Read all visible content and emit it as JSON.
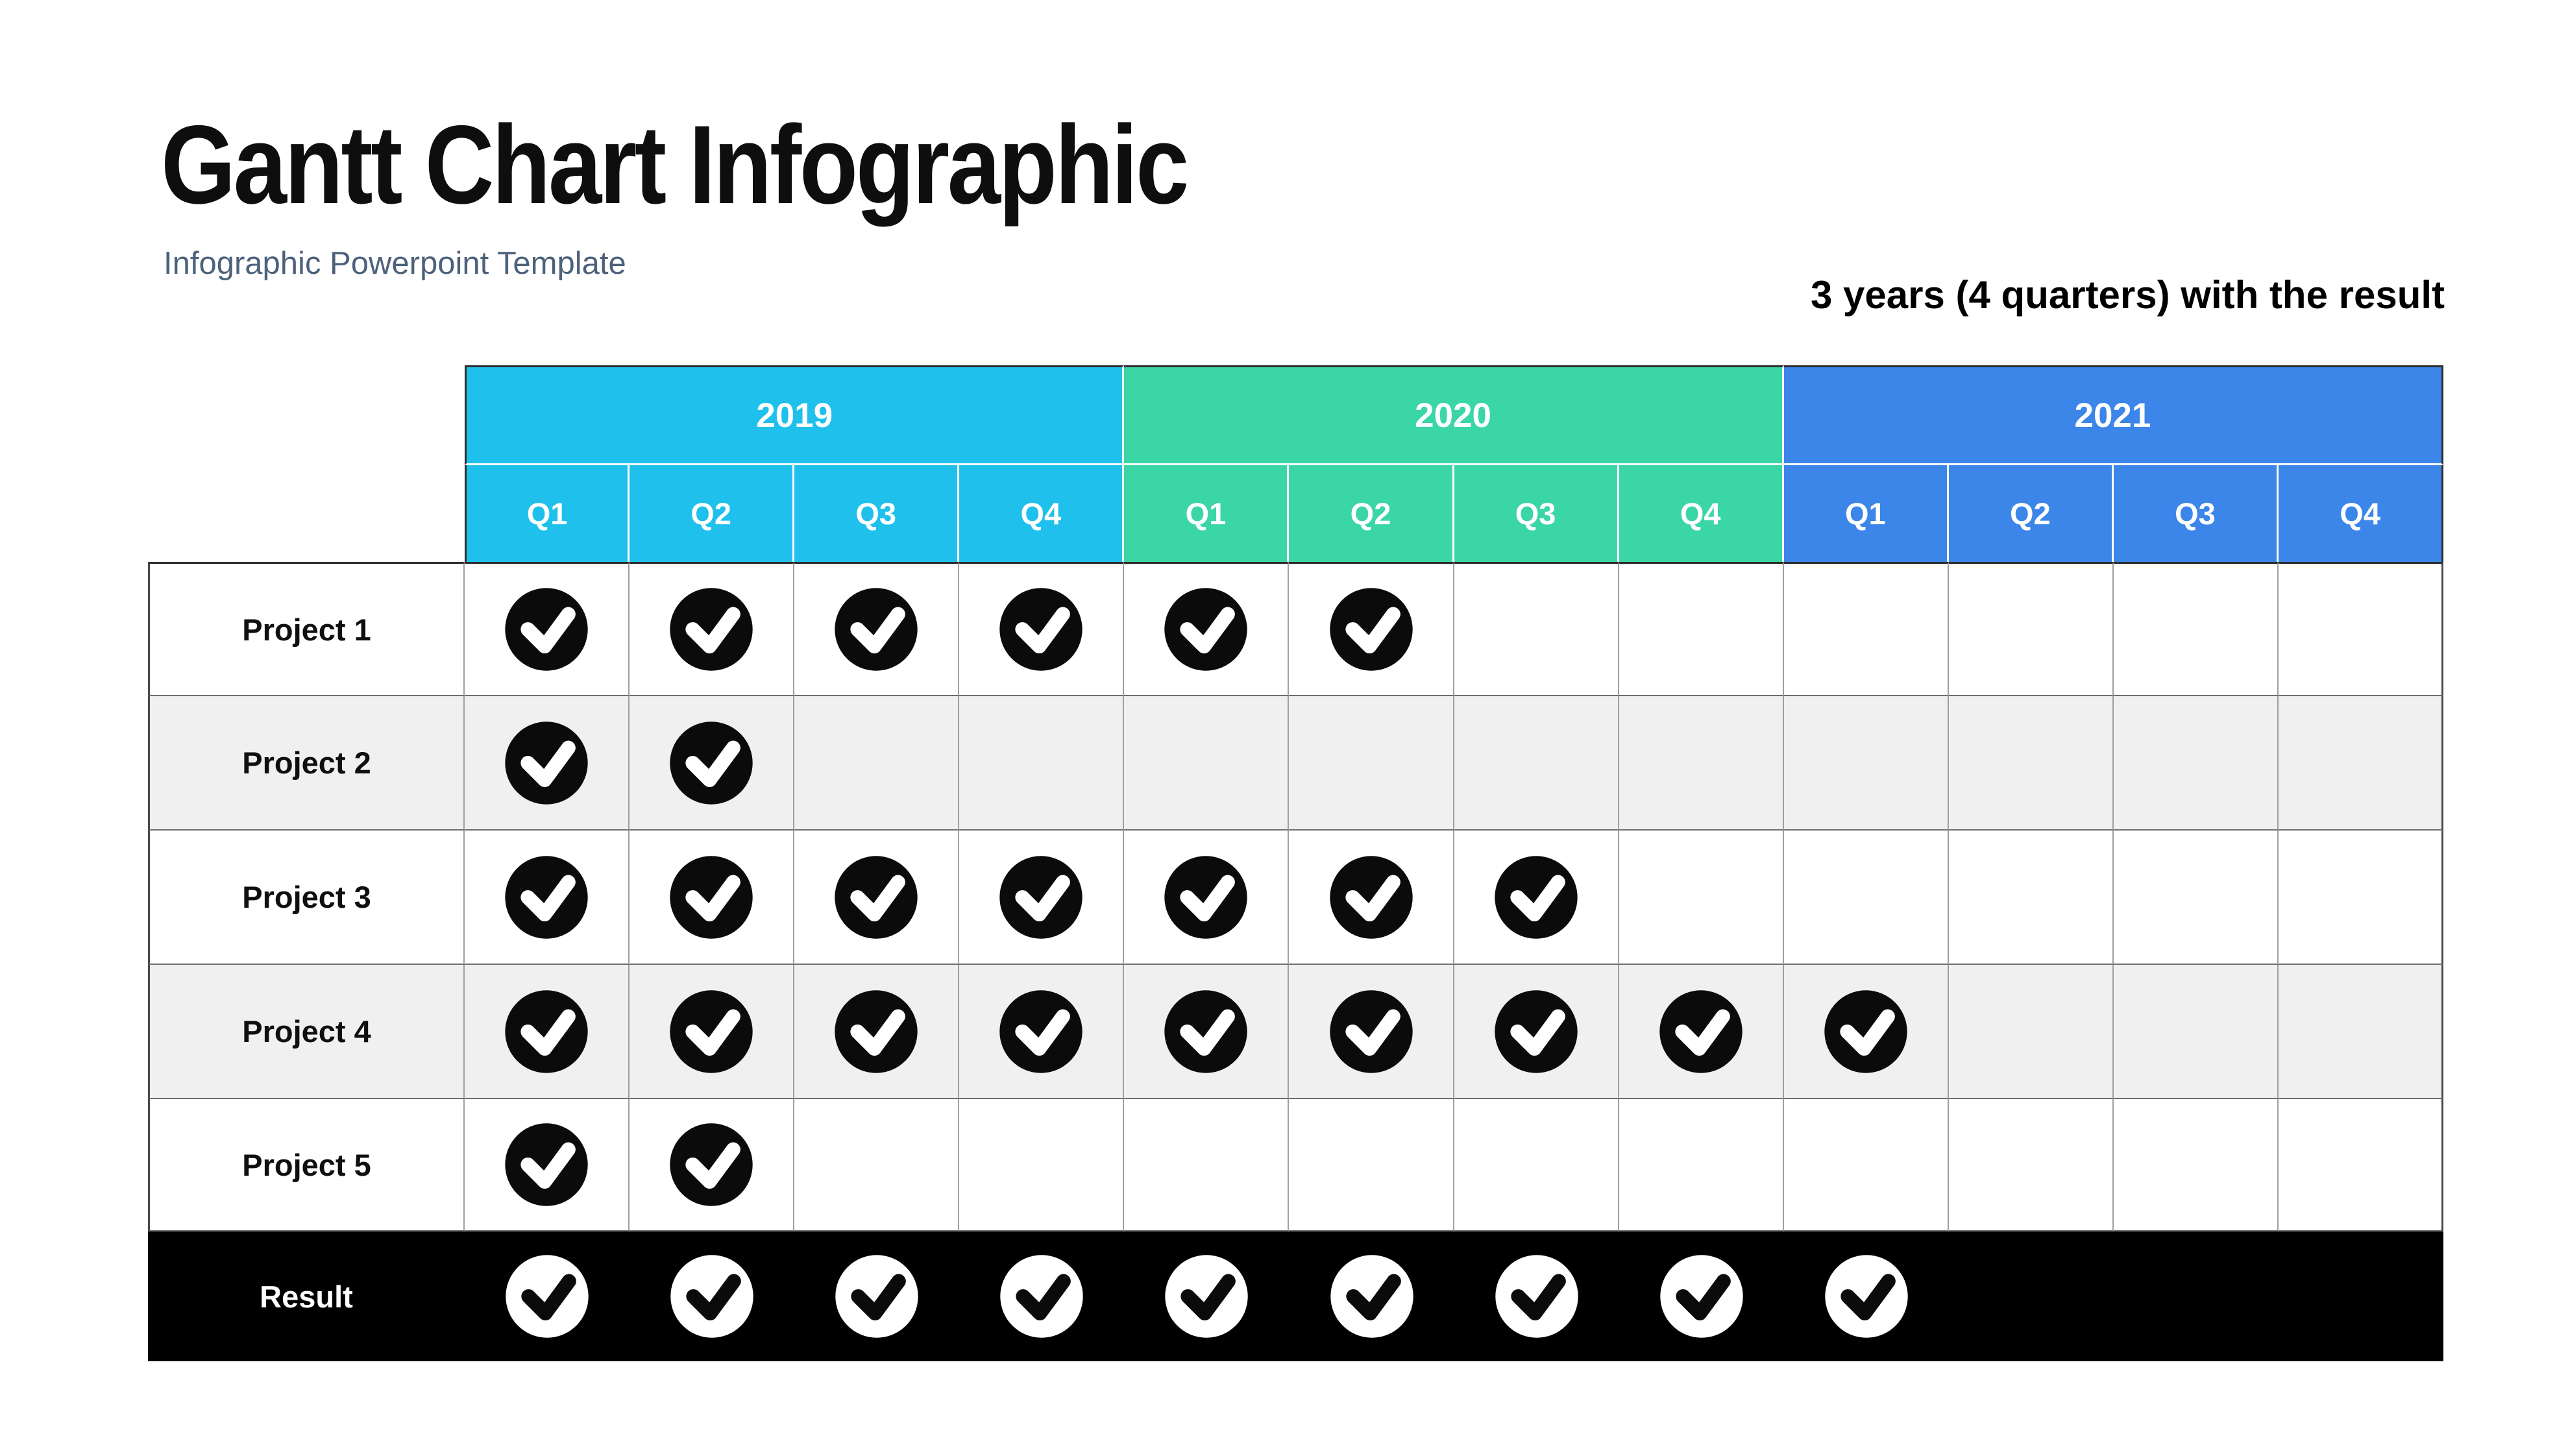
{
  "slide": {
    "title": "Gantt Chart Infographic",
    "subtitle": "Infographic Powerpoint Template",
    "annotation": "3 years (4 quarters) with the result"
  },
  "colors": {
    "year_2019": "#1fc1ec",
    "year_2020": "#3bd6a6",
    "year_2021": "#3b86e8",
    "stripe_row": "#f0f0f0",
    "result_background": "#000000",
    "check_circle": "#0b0b0b",
    "subtitle_text": "#4d617b"
  },
  "table": {
    "years": [
      {
        "label": "2019",
        "color": "#1fc1ec",
        "quarters": [
          "Q1",
          "Q2",
          "Q3",
          "Q4"
        ]
      },
      {
        "label": "2020",
        "color": "#3bd6a6",
        "quarters": [
          "Q1",
          "Q2",
          "Q3",
          "Q4"
        ]
      },
      {
        "label": "2021",
        "color": "#3b86e8",
        "quarters": [
          "Q1",
          "Q2",
          "Q3",
          "Q4"
        ]
      }
    ],
    "rows": [
      {
        "label": "Project 1",
        "checks": [
          true,
          true,
          true,
          true,
          true,
          true,
          false,
          false,
          false,
          false,
          false,
          false
        ]
      },
      {
        "label": "Project 2",
        "checks": [
          true,
          true,
          false,
          false,
          false,
          false,
          false,
          false,
          false,
          false,
          false,
          false
        ]
      },
      {
        "label": "Project 3",
        "checks": [
          true,
          true,
          true,
          true,
          true,
          true,
          true,
          false,
          false,
          false,
          false,
          false
        ]
      },
      {
        "label": "Project 4",
        "checks": [
          true,
          true,
          true,
          true,
          true,
          true,
          true,
          true,
          true,
          false,
          false,
          false
        ]
      },
      {
        "label": "Project 5",
        "checks": [
          true,
          true,
          false,
          false,
          false,
          false,
          false,
          false,
          false,
          false,
          false,
          false
        ]
      }
    ],
    "result": {
      "label": "Result",
      "checks": [
        true,
        true,
        true,
        true,
        true,
        true,
        true,
        true,
        true,
        false,
        false,
        false
      ]
    }
  },
  "chart_data": {
    "type": "table",
    "title": "Gantt Chart Infographic",
    "subtitle": "Infographic Powerpoint Template",
    "annotation": "3 years (4 quarters) with the result",
    "columns": [
      "2019 Q1",
      "2019 Q2",
      "2019 Q3",
      "2019 Q4",
      "2020 Q1",
      "2020 Q2",
      "2020 Q3",
      "2020 Q4",
      "2021 Q1",
      "2021 Q2",
      "2021 Q3",
      "2021 Q4"
    ],
    "rows": [
      {
        "name": "Project 1",
        "completed": [
          "2019 Q1",
          "2019 Q2",
          "2019 Q3",
          "2019 Q4",
          "2020 Q1",
          "2020 Q2"
        ]
      },
      {
        "name": "Project 2",
        "completed": [
          "2019 Q1",
          "2019 Q2"
        ]
      },
      {
        "name": "Project 3",
        "completed": [
          "2019 Q1",
          "2019 Q2",
          "2019 Q3",
          "2019 Q4",
          "2020 Q1",
          "2020 Q2",
          "2020 Q3"
        ]
      },
      {
        "name": "Project 4",
        "completed": [
          "2019 Q1",
          "2019 Q2",
          "2019 Q3",
          "2019 Q4",
          "2020 Q1",
          "2020 Q2",
          "2020 Q3",
          "2020 Q4",
          "2021 Q1"
        ]
      },
      {
        "name": "Project 5",
        "completed": [
          "2019 Q1",
          "2019 Q2"
        ]
      },
      {
        "name": "Result",
        "completed": [
          "2019 Q1",
          "2019 Q2",
          "2019 Q3",
          "2019 Q4",
          "2020 Q1",
          "2020 Q2",
          "2020 Q3",
          "2020 Q4",
          "2021 Q1"
        ]
      }
    ]
  }
}
